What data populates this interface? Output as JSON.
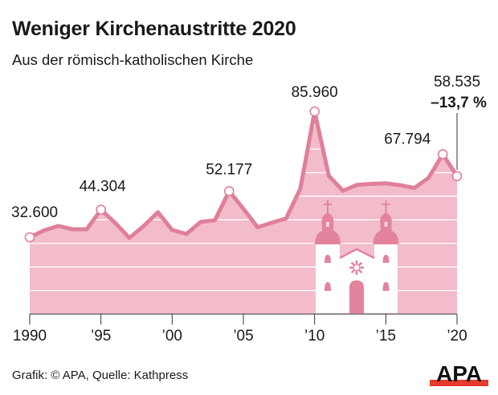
{
  "header": {
    "title": "Weniger Kirchenaustritte 2020",
    "subtitle": "Aus der römisch-katholischen Kirche"
  },
  "footer": {
    "source": "Grafik: © APA, Quelle: Kathpress",
    "logo_text": "APA"
  },
  "colors": {
    "area": "#f2bccb",
    "line": "#e07f99",
    "church_accent": "#e3839d",
    "grid": "#ffffff",
    "logo_red": "#e53a2c"
  },
  "chart_data": {
    "type": "area",
    "title": "Weniger Kirchenaustritte 2020",
    "subtitle": "Aus der römisch-katholischen Kirche",
    "xlabel": "",
    "ylabel": "",
    "x": [
      1990,
      1991,
      1992,
      1993,
      1994,
      1995,
      1996,
      1997,
      1998,
      1999,
      2000,
      2001,
      2002,
      2003,
      2004,
      2005,
      2006,
      2007,
      2008,
      2009,
      2010,
      2011,
      2012,
      2013,
      2014,
      2015,
      2016,
      2017,
      2018,
      2019,
      2020
    ],
    "values": [
      32600,
      35500,
      37400,
      36000,
      36000,
      44304,
      38700,
      32300,
      37400,
      43200,
      35700,
      34000,
      39100,
      39800,
      52177,
      44685,
      36853,
      38800,
      40596,
      53216,
      85960,
      58603,
      52336,
      54869,
      55253,
      55500,
      54700,
      53500,
      57800,
      67794,
      58535
    ],
    "xlim": [
      1990,
      2020
    ],
    "ylim": [
      0,
      90000
    ],
    "grid_values": [
      10000,
      20000,
      30000,
      40000,
      50000,
      60000,
      70000,
      80000
    ],
    "x_ticks": [
      {
        "value": 1990,
        "label": "1990"
      },
      {
        "value": 1995,
        "label": "’95"
      },
      {
        "value": 2000,
        "label": "’00"
      },
      {
        "value": 2005,
        "label": "’05"
      },
      {
        "value": 2010,
        "label": "’10"
      },
      {
        "value": 2015,
        "label": "’15"
      },
      {
        "value": 2020,
        "label": "’20"
      }
    ],
    "data_labels": [
      {
        "year": 1990,
        "label": "32.600"
      },
      {
        "year": 1995,
        "label": "44.304"
      },
      {
        "year": 2004,
        "label": "52.177"
      },
      {
        "year": 2010,
        "label": "85.960"
      },
      {
        "year": 2019,
        "label": "67.794"
      },
      {
        "year": 2020,
        "label": "58.535"
      }
    ],
    "annotation": "–13,7 %"
  }
}
